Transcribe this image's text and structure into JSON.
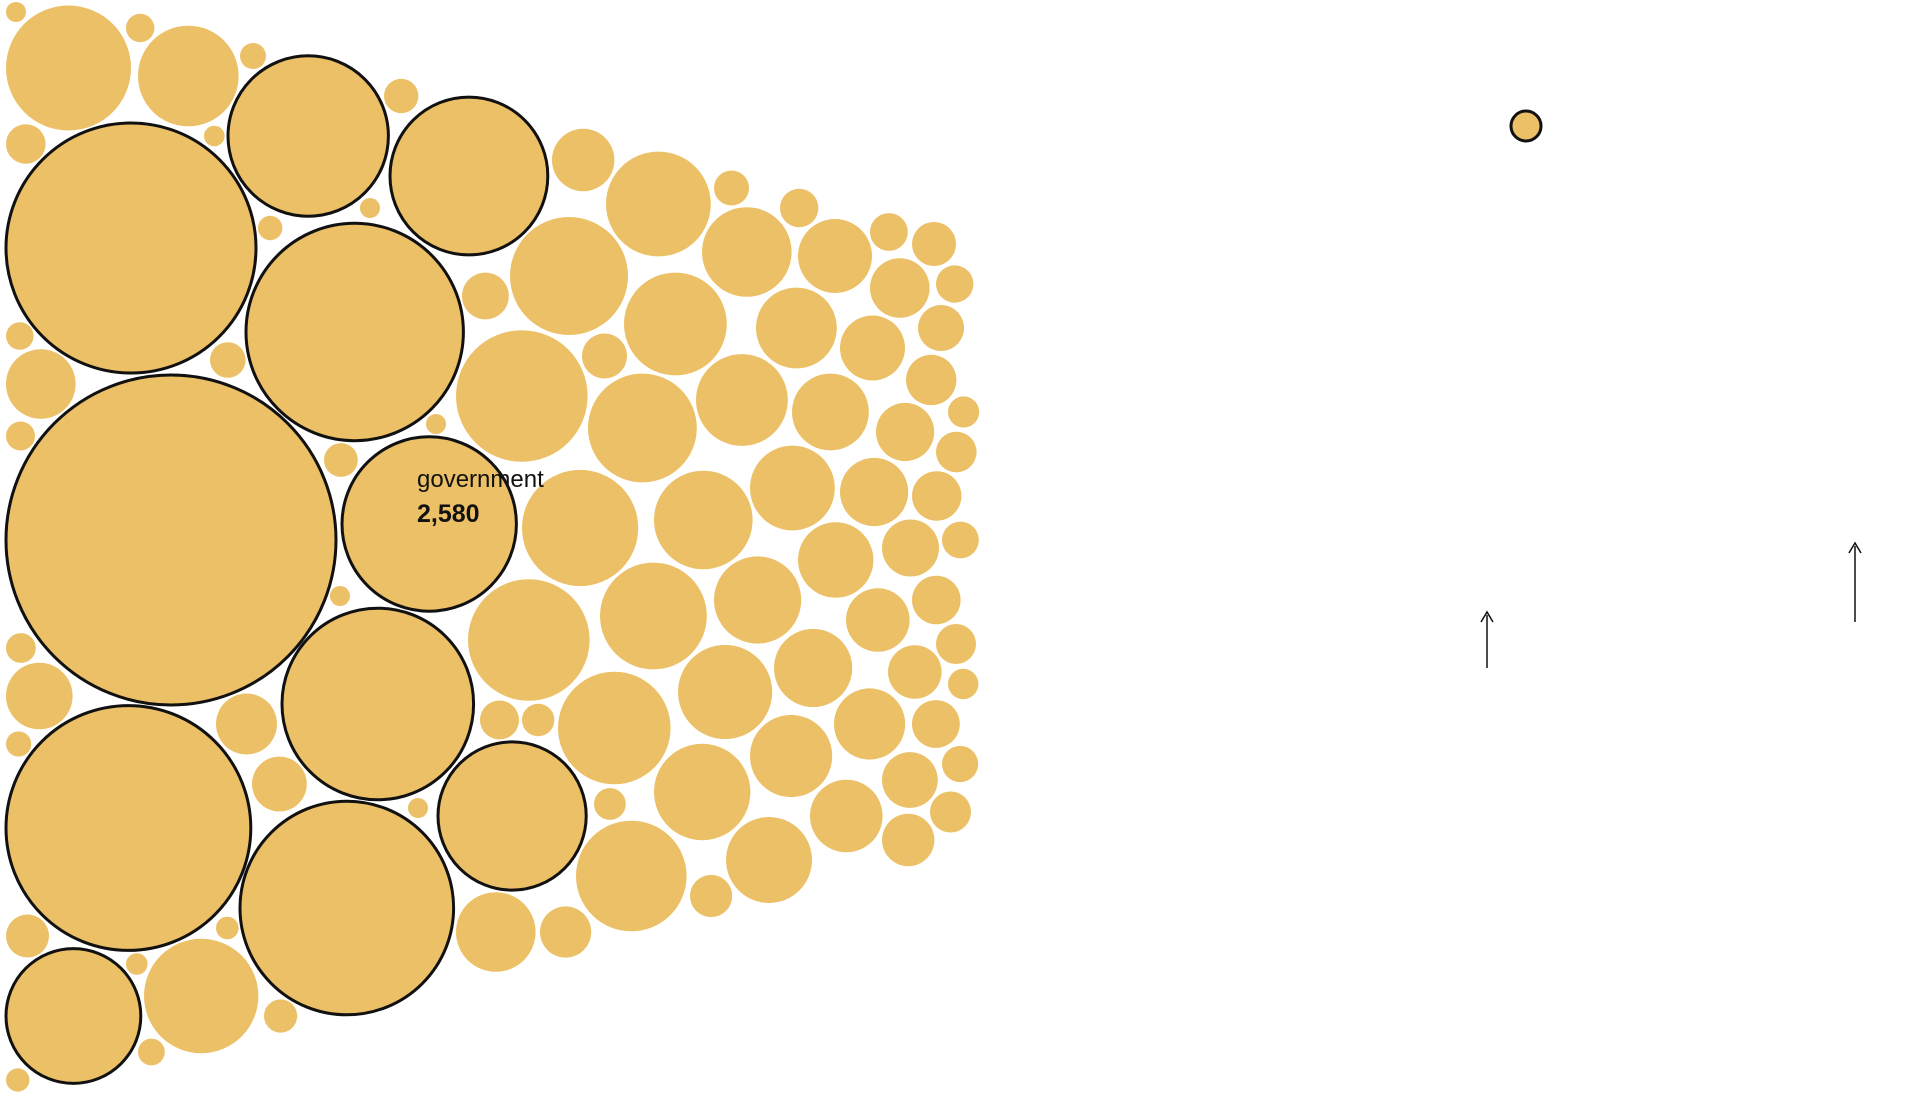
{
  "chart_data": {
    "type": "bubble",
    "colors": {
      "fill": "#ECC066",
      "outline": "#111111",
      "text": "#111111"
    },
    "highlighted": {
      "label": "government",
      "value": "2,580"
    },
    "bubbles": [
      {
        "v": 2580,
        "o": true
      },
      {
        "v": 1480,
        "o": true
      },
      {
        "v": 1420,
        "o": true
      },
      {
        "v": 1120,
        "o": true
      },
      {
        "v": 1080,
        "o": true
      },
      {
        "v": 870,
        "o": true
      },
      {
        "v": 720,
        "o": true
      },
      {
        "v": 610,
        "o": true
      },
      {
        "v": 590,
        "o": true
      },
      {
        "v": 520,
        "o": true
      },
      {
        "v": 430,
        "o": true
      },
      {
        "v": 410
      },
      {
        "v": 370
      },
      {
        "v": 350
      },
      {
        "v": 330
      },
      {
        "v": 320
      },
      {
        "v": 310
      },
      {
        "v": 300
      },
      {
        "v": 290
      },
      {
        "v": 280
      },
      {
        "v": 270
      },
      {
        "v": 260
      },
      {
        "v": 250
      },
      {
        "v": 240
      },
      {
        "v": 230
      },
      {
        "v": 220
      },
      {
        "v": 210
      },
      {
        "v": 200
      },
      {
        "v": 190
      },
      {
        "v": 180
      },
      {
        "v": 175
      },
      {
        "v": 170
      },
      {
        "v": 160
      },
      {
        "v": 155
      },
      {
        "v": 150
      },
      {
        "v": 145
      },
      {
        "v": 140
      },
      {
        "v": 135
      },
      {
        "v": 130
      },
      {
        "v": 125
      },
      {
        "v": 120
      },
      {
        "v": 115
      },
      {
        "v": 110
      },
      {
        "v": 105
      },
      {
        "v": 100
      },
      {
        "v": 96
      },
      {
        "v": 92
      },
      {
        "v": 88
      },
      {
        "v": 84
      },
      {
        "v": 80
      },
      {
        "v": 77
      },
      {
        "v": 74
      },
      {
        "v": 71
      },
      {
        "v": 68
      },
      {
        "v": 65
      },
      {
        "v": 62
      },
      {
        "v": 60
      },
      {
        "v": 58
      },
      {
        "v": 56
      },
      {
        "v": 54
      },
      {
        "v": 52
      },
      {
        "v": 50
      },
      {
        "v": 48
      },
      {
        "v": 46
      },
      {
        "v": 44
      },
      {
        "v": 42
      },
      {
        "v": 40
      },
      {
        "v": 39
      },
      {
        "v": 38
      },
      {
        "v": 37
      },
      {
        "v": 36
      },
      {
        "v": 35
      },
      {
        "v": 34
      },
      {
        "v": 33
      },
      {
        "v": 32
      },
      {
        "v": 31
      },
      {
        "v": 30
      },
      {
        "v": 29
      },
      {
        "v": 28
      },
      {
        "v": 27
      },
      {
        "v": 26
      },
      {
        "v": 25
      },
      {
        "v": 24
      },
      {
        "v": 23
      },
      {
        "v": 22
      },
      {
        "v": 21
      },
      {
        "v": 20
      },
      {
        "v": 19
      },
      {
        "v": 18
      },
      {
        "v": 17
      },
      {
        "v": 16
      },
      {
        "v": 15
      },
      {
        "v": 14
      },
      {
        "v": 13
      },
      {
        "v": 12
      },
      {
        "v": 11
      },
      {
        "v": 10
      },
      {
        "v": 9
      },
      {
        "v": 8
      },
      {
        "v": 7
      },
      {
        "v": 6
      },
      {
        "v": 5
      }
    ],
    "legend_bubble": {
      "outlined": true
    }
  }
}
